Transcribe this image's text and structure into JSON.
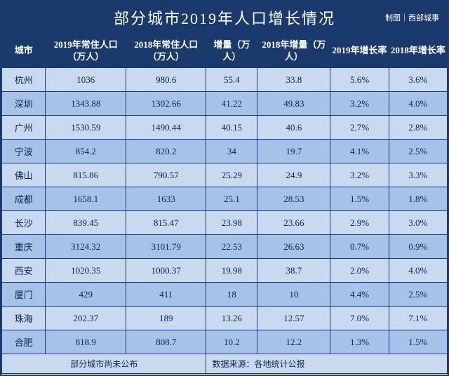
{
  "title": "部分城市2019年人口增长情况",
  "subtitle": "制图｜西部城事",
  "colors": {
    "header_bg": "#1a3a6e",
    "header_text": "#ffffff",
    "row_odd_bg": "#c8d9f0",
    "row_even_bg": "#a7c2e8",
    "text_color": "#0d2550",
    "border_color": "#1a3a6e",
    "title_bg": "#1a3a6e",
    "title_text": "#ffffff"
  },
  "columns": [
    {
      "key": "city",
      "label": "城市",
      "class": "col-city"
    },
    {
      "key": "pop2019",
      "label": "2019年常住人口（万人）",
      "class": "col-2019pop"
    },
    {
      "key": "pop2018",
      "label": "2018年常住人口（万人）",
      "class": "col-2018pop"
    },
    {
      "key": "inc",
      "label": "增量（万人）",
      "class": "col-inc"
    },
    {
      "key": "inc2018",
      "label": "2018年增量（万人）",
      "class": "col-2018inc"
    },
    {
      "key": "rate2019",
      "label": "2019年增长率",
      "class": "col-2019rate"
    },
    {
      "key": "rate2018",
      "label": "2018年增长率",
      "class": "col-2018rate"
    }
  ],
  "rows": [
    {
      "city": "杭州",
      "pop2019": "1036",
      "pop2018": "980.6",
      "inc": "55.4",
      "inc2018": "33.8",
      "rate2019": "5.6%",
      "rate2018": "3.6%"
    },
    {
      "city": "深圳",
      "pop2019": "1343.88",
      "pop2018": "1302.66",
      "inc": "41.22",
      "inc2018": "49.83",
      "rate2019": "3.2%",
      "rate2018": "4.0%"
    },
    {
      "city": "广州",
      "pop2019": "1530.59",
      "pop2018": "1490.44",
      "inc": "40.15",
      "inc2018": "40.6",
      "rate2019": "2.7%",
      "rate2018": "2.8%"
    },
    {
      "city": "宁波",
      "pop2019": "854.2",
      "pop2018": "820.2",
      "inc": "34",
      "inc2018": "19.7",
      "rate2019": "4.1%",
      "rate2018": "2.5%"
    },
    {
      "city": "佛山",
      "pop2019": "815.86",
      "pop2018": "790.57",
      "inc": "25.29",
      "inc2018": "24.9",
      "rate2019": "3.2%",
      "rate2018": "3.3%"
    },
    {
      "city": "成都",
      "pop2019": "1658.1",
      "pop2018": "1633",
      "inc": "25.1",
      "inc2018": "28.53",
      "rate2019": "1.5%",
      "rate2018": "1.8%"
    },
    {
      "city": "长沙",
      "pop2019": "839.45",
      "pop2018": "815.47",
      "inc": "23.98",
      "inc2018": "23.66",
      "rate2019": "2.9%",
      "rate2018": "3.0%"
    },
    {
      "city": "重庆",
      "pop2019": "3124.32",
      "pop2018": "3101.79",
      "inc": "22.53",
      "inc2018": "26.63",
      "rate2019": "0.7%",
      "rate2018": "0.9%"
    },
    {
      "city": "西安",
      "pop2019": "1020.35",
      "pop2018": "1000.37",
      "inc": "19.98",
      "inc2018": "38.7",
      "rate2019": "2.0%",
      "rate2018": "4.0%"
    },
    {
      "city": "厦门",
      "pop2019": "429",
      "pop2018": "411",
      "inc": "18",
      "inc2018": "10",
      "rate2019": "4.4%",
      "rate2018": "2.5%"
    },
    {
      "city": "珠海",
      "pop2019": "202.37",
      "pop2018": "189",
      "inc": "13.26",
      "inc2018": "12.57",
      "rate2019": "7.0%",
      "rate2018": "7.1%"
    },
    {
      "city": "合肥",
      "pop2019": "818.9",
      "pop2018": "808.7",
      "inc": "10.2",
      "inc2018": "12.2",
      "rate2019": "1.3%",
      "rate2018": "1.5%"
    }
  ],
  "footer": {
    "left": "部分城市尚未公布",
    "right": "数据来源：各地统计公报"
  }
}
